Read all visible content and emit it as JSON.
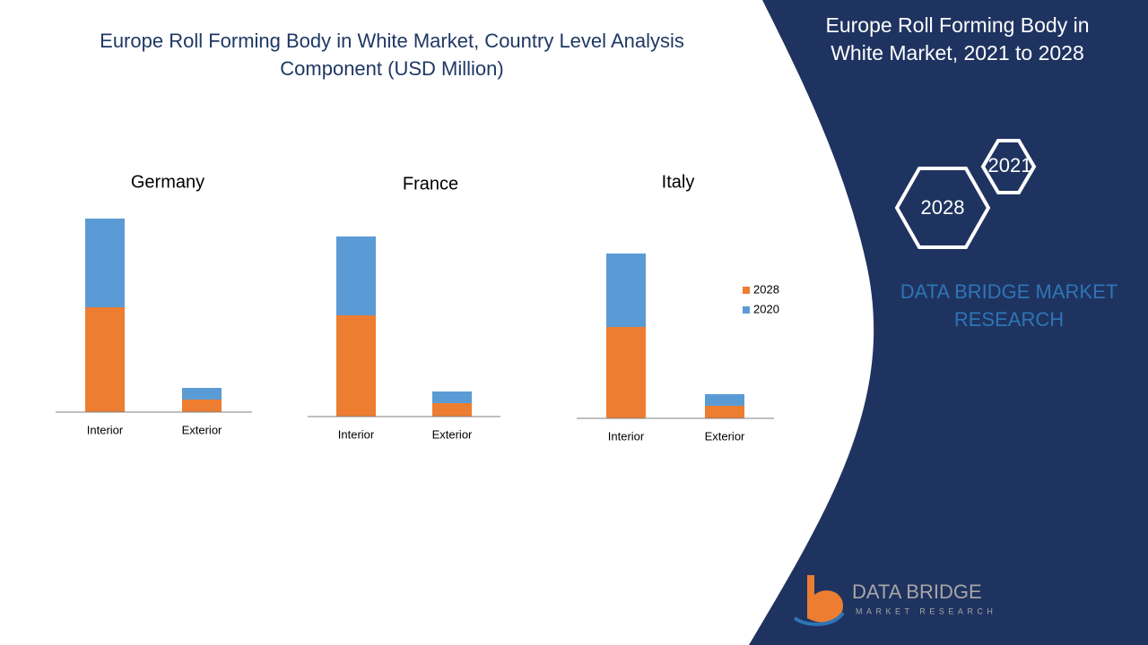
{
  "title": "Europe Roll Forming Body in White Market, Country Level Analysis Component (USD Million)",
  "chart_data": [
    {
      "type": "bar",
      "stacked": true,
      "title": "Germany",
      "categories": [
        "Interior",
        "Exterior"
      ],
      "series": [
        {
          "color": "#ed7d31",
          "values": [
            117,
            14
          ]
        },
        {
          "color": "#5b9bd5",
          "values": [
            99,
            13
          ]
        }
      ]
    },
    {
      "type": "bar",
      "stacked": true,
      "title": "France",
      "categories": [
        "Interior",
        "Exterior"
      ],
      "series": [
        {
          "color": "#ed7d31",
          "values": [
            113,
            15
          ]
        },
        {
          "color": "#5b9bd5",
          "values": [
            88,
            13
          ]
        }
      ]
    },
    {
      "type": "bar",
      "stacked": true,
      "title": "Italy",
      "categories": [
        "Interior",
        "Exterior"
      ],
      "series": [
        {
          "name": "2028",
          "color": "#ed7d31",
          "values": [
            102,
            14
          ]
        },
        {
          "name": "2020",
          "color": "#5b9bd5",
          "values": [
            82,
            13
          ]
        }
      ],
      "legend": "right"
    }
  ],
  "side_panel": {
    "title": "Europe Roll Forming Body in White Market, 2021 to 2028",
    "hexagons": [
      "2021",
      "2028"
    ],
    "brand": "DATA BRIDGE MARKET RESEARCH",
    "logo_name": "DATA BRIDGE",
    "logo_tagline": "MARKET RESEARCH"
  }
}
